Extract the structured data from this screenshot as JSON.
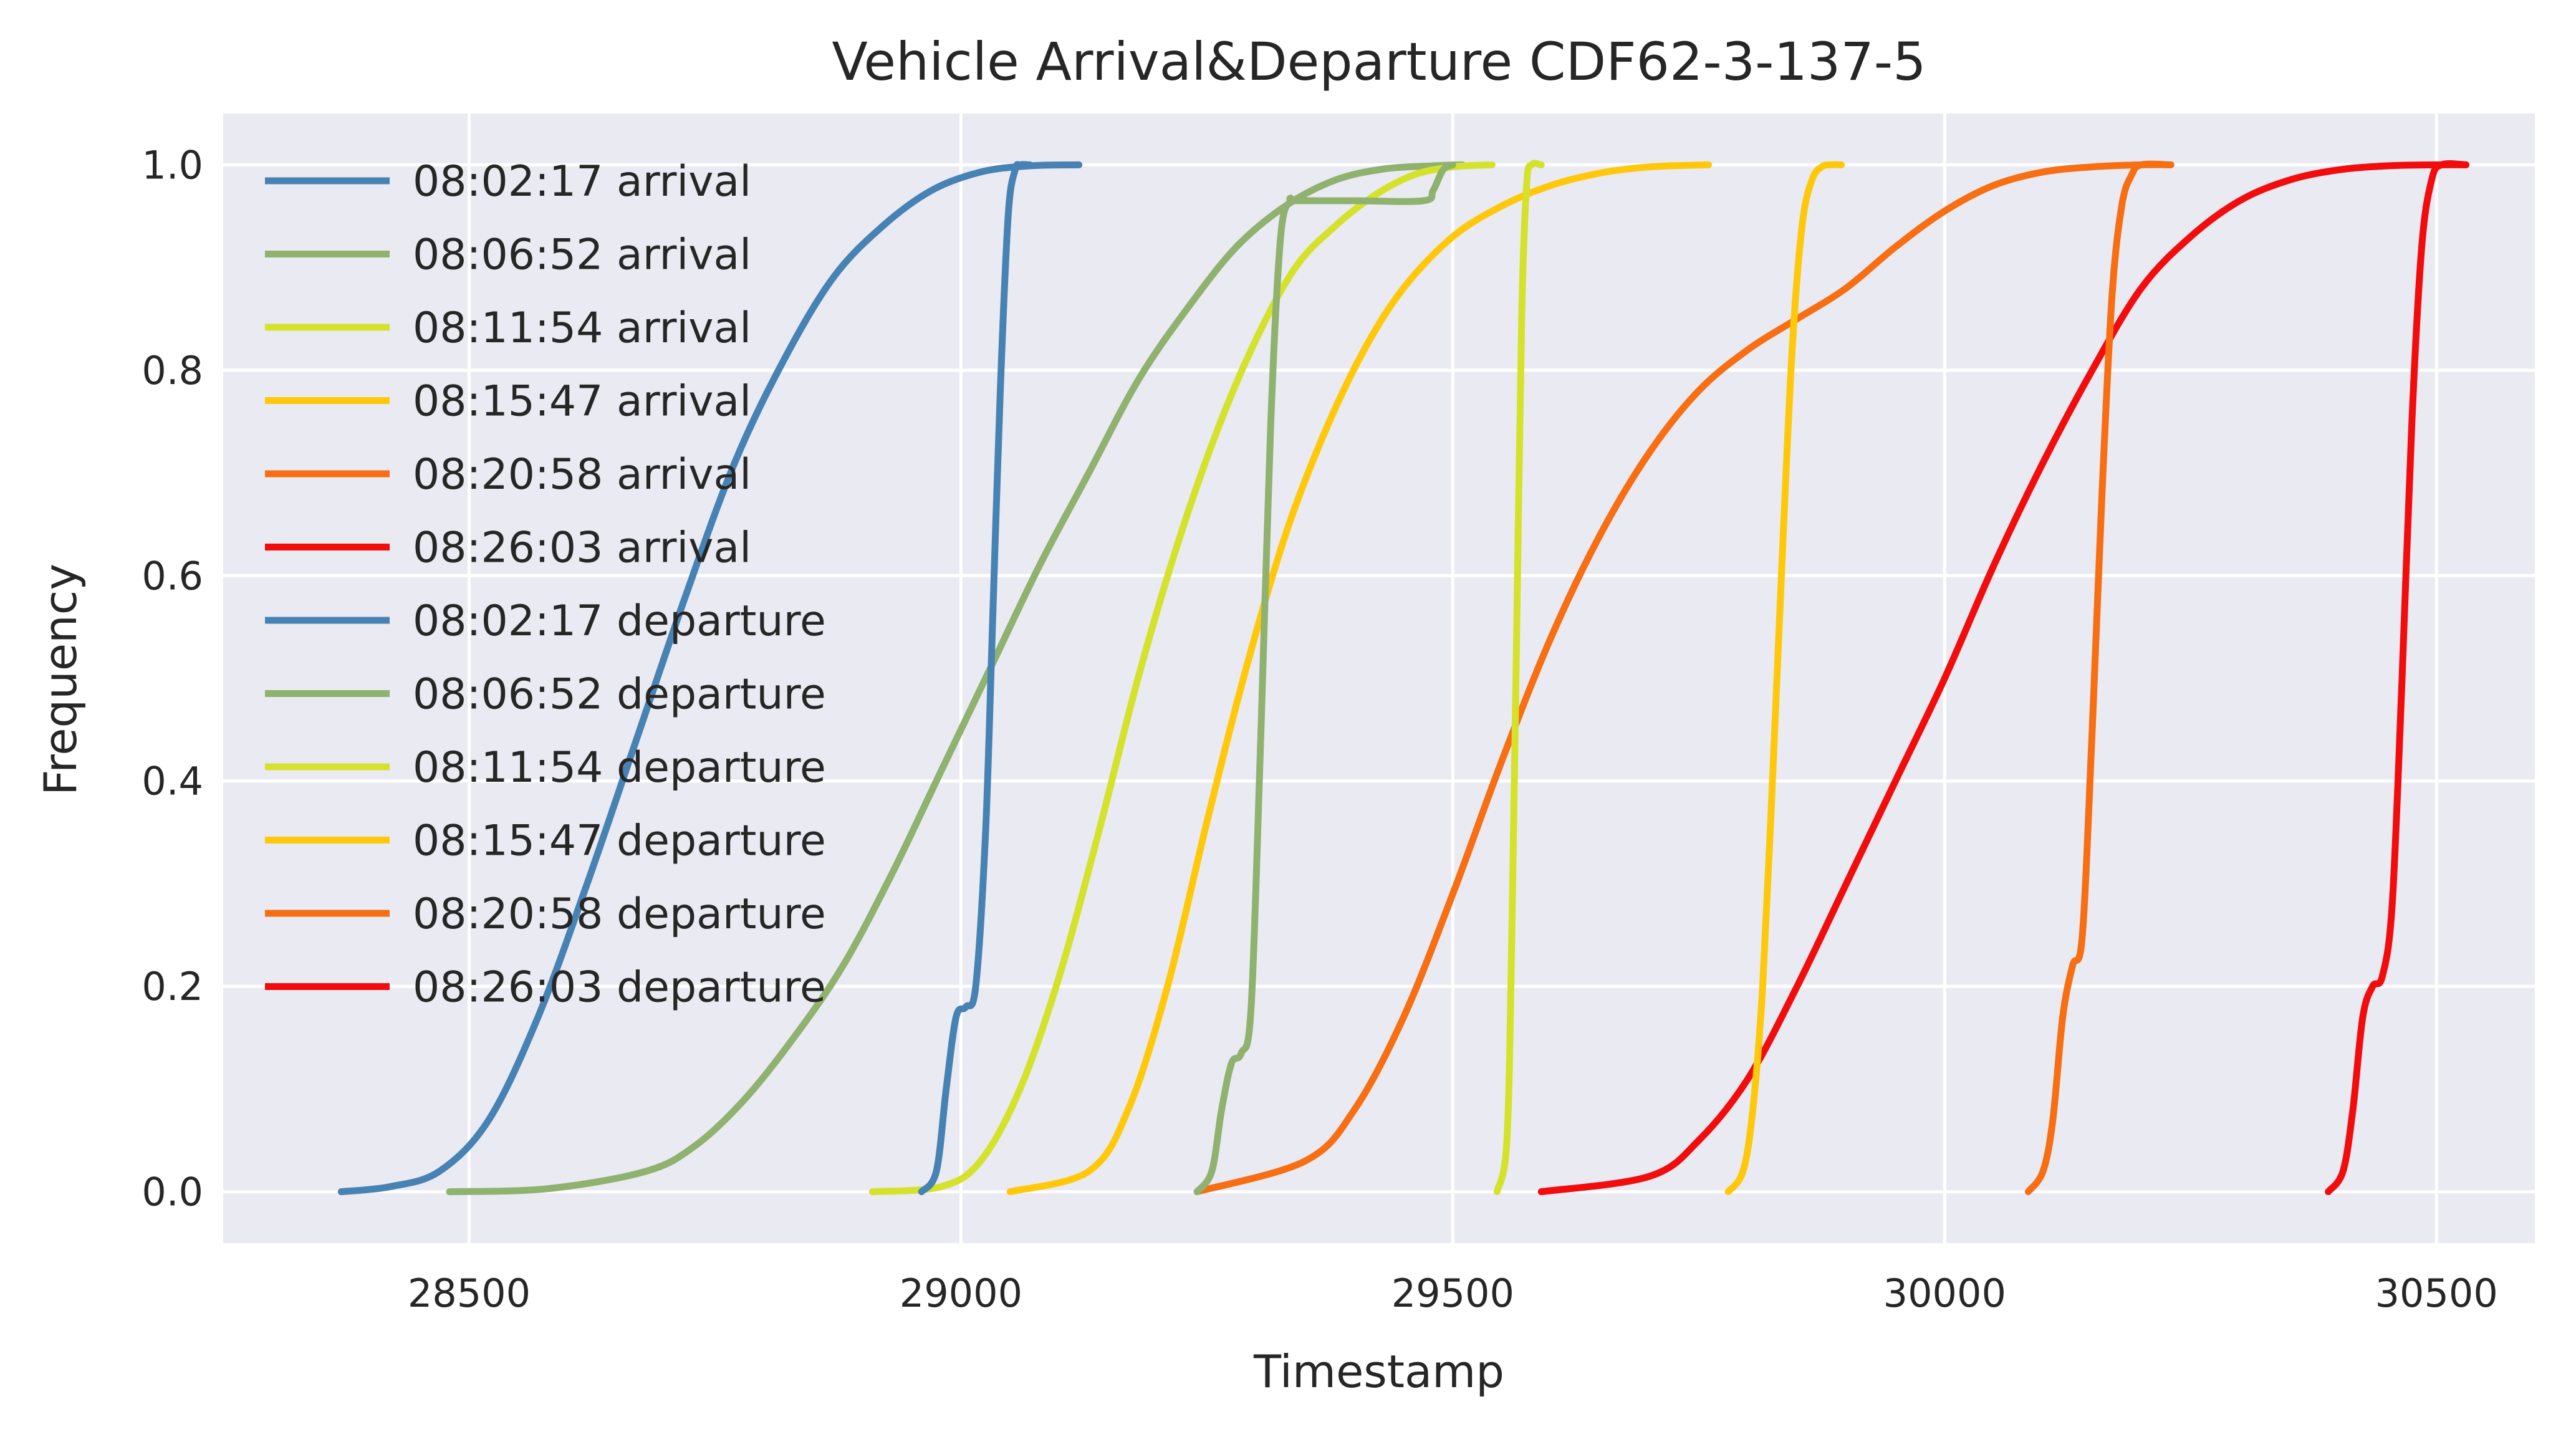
{
  "chart_data": {
    "type": "line",
    "title": "Vehicle Arrival&Departure CDF62-3-137-5",
    "xlabel": "Timestamp",
    "ylabel": "Frequency",
    "xlim": [
      28250,
      30600
    ],
    "ylim": [
      -0.05,
      1.05
    ],
    "xticks": [
      28500,
      29000,
      29500,
      30000,
      30500
    ],
    "yticks": [
      0.0,
      0.2,
      0.4,
      0.6,
      0.8,
      1.0
    ],
    "xtick_labels": [
      "28500",
      "29000",
      "29500",
      "30000",
      "30500"
    ],
    "ytick_labels": [
      "0.0",
      "0.2",
      "0.4",
      "0.6",
      "0.8",
      "1.0"
    ],
    "grid": true,
    "legend_position": "top-left",
    "background_color": "#EAEAF2",
    "series": [
      {
        "name": "08:02:17 arrival",
        "color": "#4682B4",
        "x": [
          28370,
          28420,
          28470,
          28520,
          28570,
          28620,
          28670,
          28720,
          28770,
          28820,
          28870,
          28920,
          28970,
          29020,
          29070,
          29120
        ],
        "y": [
          0.0,
          0.005,
          0.02,
          0.07,
          0.17,
          0.3,
          0.44,
          0.58,
          0.71,
          0.81,
          0.89,
          0.94,
          0.975,
          0.993,
          0.999,
          1.0
        ]
      },
      {
        "name": "08:06:52 arrival",
        "color": "#8FB26F",
        "x": [
          28480,
          28580,
          28680,
          28730,
          28780,
          28830,
          28880,
          28930,
          28980,
          29030,
          29080,
          29130,
          29180,
          29230,
          29280,
          29330,
          29380,
          29430,
          29480,
          29510
        ],
        "y": [
          0.0,
          0.003,
          0.02,
          0.045,
          0.09,
          0.15,
          0.22,
          0.31,
          0.41,
          0.51,
          0.61,
          0.7,
          0.79,
          0.86,
          0.92,
          0.96,
          0.985,
          0.996,
          0.999,
          1.0
        ]
      },
      {
        "name": "08:11:54 arrival",
        "color": "#D4E22B",
        "x": [
          28910,
          28980,
          29020,
          29060,
          29100,
          29140,
          29180,
          29220,
          29260,
          29300,
          29340,
          29380,
          29420,
          29460,
          29500,
          29540
        ],
        "y": [
          0.0,
          0.005,
          0.03,
          0.1,
          0.21,
          0.35,
          0.5,
          0.63,
          0.74,
          0.83,
          0.9,
          0.94,
          0.97,
          0.99,
          0.998,
          1.0
        ]
      },
      {
        "name": "08:15:47 arrival",
        "color": "#FFC80A",
        "x": [
          29050,
          29130,
          29170,
          29210,
          29250,
          29290,
          29330,
          29370,
          29410,
          29450,
          29500,
          29550,
          29600,
          29650,
          29700,
          29760
        ],
        "y": [
          0.0,
          0.02,
          0.08,
          0.2,
          0.36,
          0.51,
          0.64,
          0.74,
          0.82,
          0.88,
          0.93,
          0.96,
          0.98,
          0.992,
          0.998,
          1.0
        ]
      },
      {
        "name": "08:20:58 arrival",
        "color": "#F86E12",
        "x": [
          29240,
          29350,
          29400,
          29450,
          29500,
          29550,
          29600,
          29650,
          29700,
          29750,
          29800,
          29850,
          29900,
          29950,
          30000,
          30050,
          30100,
          30150,
          30200,
          30230
        ],
        "y": [
          0.0,
          0.03,
          0.08,
          0.17,
          0.29,
          0.42,
          0.54,
          0.64,
          0.72,
          0.78,
          0.82,
          0.85,
          0.88,
          0.92,
          0.955,
          0.98,
          0.993,
          0.998,
          1.0,
          1.0
        ]
      },
      {
        "name": "08:26:03 arrival",
        "color": "#F20C0C",
        "x": [
          29590,
          29700,
          29750,
          29800,
          29850,
          29900,
          29950,
          30000,
          30050,
          30100,
          30150,
          30200,
          30250,
          30300,
          30350,
          30400,
          30450,
          30500,
          30530
        ],
        "y": [
          0.0,
          0.015,
          0.05,
          0.11,
          0.2,
          0.3,
          0.4,
          0.5,
          0.61,
          0.71,
          0.8,
          0.88,
          0.93,
          0.965,
          0.985,
          0.995,
          0.999,
          1.0,
          1.0
        ]
      },
      {
        "name": "08:02:17 departure",
        "color": "#4682B4",
        "x": [
          28960,
          28975,
          28985,
          28995,
          29005,
          29015,
          29025,
          29032,
          29040,
          29048,
          29055,
          29060,
          29070
        ],
        "y": [
          0.0,
          0.02,
          0.1,
          0.17,
          0.18,
          0.2,
          0.35,
          0.55,
          0.78,
          0.95,
          0.995,
          1.0,
          1.0
        ]
      },
      {
        "name": "08:06:52 departure",
        "color": "#8FB26F",
        "x": [
          29240,
          29255,
          29265,
          29275,
          29285,
          29295,
          29305,
          29315,
          29325,
          29335,
          29340,
          29400,
          29470,
          29480,
          29490,
          29500
        ],
        "y": [
          0.0,
          0.02,
          0.08,
          0.125,
          0.135,
          0.18,
          0.45,
          0.75,
          0.93,
          0.965,
          0.965,
          0.965,
          0.965,
          0.975,
          0.995,
          1.0
        ]
      },
      {
        "name": "08:11:54 departure",
        "color": "#D4E22B",
        "x": [
          29545,
          29555,
          29560,
          29565,
          29570,
          29575,
          29580,
          29590
        ],
        "y": [
          0.0,
          0.05,
          0.25,
          0.55,
          0.85,
          0.98,
          1.0,
          1.0
        ]
      },
      {
        "name": "08:15:47 departure",
        "color": "#FFC80A",
        "x": [
          29780,
          29795,
          29805,
          29815,
          29825,
          29835,
          29845,
          29855,
          29865,
          29875,
          29885,
          29895
        ],
        "y": [
          0.0,
          0.02,
          0.08,
          0.2,
          0.4,
          0.62,
          0.82,
          0.94,
          0.985,
          0.998,
          1.0,
          1.0
        ]
      },
      {
        "name": "08:20:58 departure",
        "color": "#F86E12",
        "x": [
          30085,
          30100,
          30110,
          30120,
          30130,
          30140,
          30150,
          30160,
          30170,
          30180,
          30190,
          30200,
          30230
        ],
        "y": [
          0.0,
          0.02,
          0.07,
          0.17,
          0.22,
          0.25,
          0.45,
          0.68,
          0.87,
          0.96,
          0.99,
          1.0,
          1.0
        ]
      },
      {
        "name": "08:26:03 departure",
        "color": "#F20C0C",
        "x": [
          30390,
          30405,
          30415,
          30425,
          30435,
          30445,
          30455,
          30465,
          30475,
          30485,
          30495,
          30505,
          30530
        ],
        "y": [
          0.0,
          0.02,
          0.08,
          0.17,
          0.2,
          0.21,
          0.28,
          0.5,
          0.75,
          0.92,
          0.985,
          1.0,
          1.0
        ]
      }
    ]
  }
}
